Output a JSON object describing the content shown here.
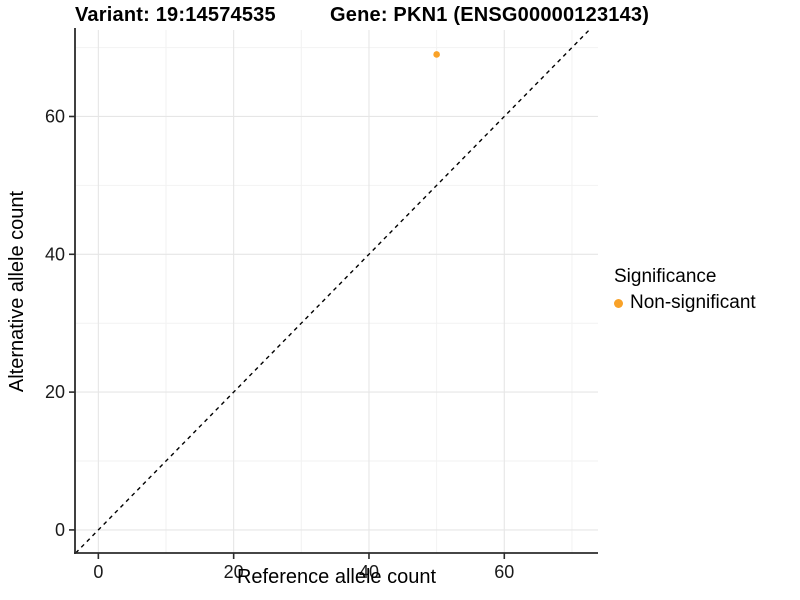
{
  "chart_data": {
    "type": "scatter",
    "titles": {
      "left": "Variant: 19:14574535",
      "right": "Gene: PKN1 (ENSG00000123143)"
    },
    "xlabel": "Reference allele count",
    "ylabel": "Alternative allele count",
    "xlim": [
      -3.45,
      73.85
    ],
    "ylim": [
      -3.35,
      72.55
    ],
    "xticks": [
      0,
      20,
      40,
      60
    ],
    "yticks": [
      0,
      20,
      40,
      60
    ],
    "minor_xticks": [
      10,
      30,
      50,
      70
    ],
    "minor_yticks": [
      10,
      30,
      50,
      70
    ],
    "grid": true,
    "identity_line": {
      "slope": 1,
      "intercept": 0,
      "style": "dashed",
      "color": "#000000"
    },
    "series": [
      {
        "name": "Non-significant",
        "color": "#F9A228",
        "points": [
          {
            "x": 50,
            "y": 69
          }
        ]
      }
    ],
    "legend": {
      "title": "Significance",
      "position": "right",
      "items": [
        {
          "label": "Non-significant",
          "color": "#F9A228"
        }
      ]
    },
    "colors": {
      "background": "#FFFFFF",
      "axis": "#2B2B2B",
      "grid_major": "#E6E6E6",
      "grid_minor": "#F2F2F2",
      "text": "#000000",
      "tick_text": "#1A1A1A"
    }
  }
}
